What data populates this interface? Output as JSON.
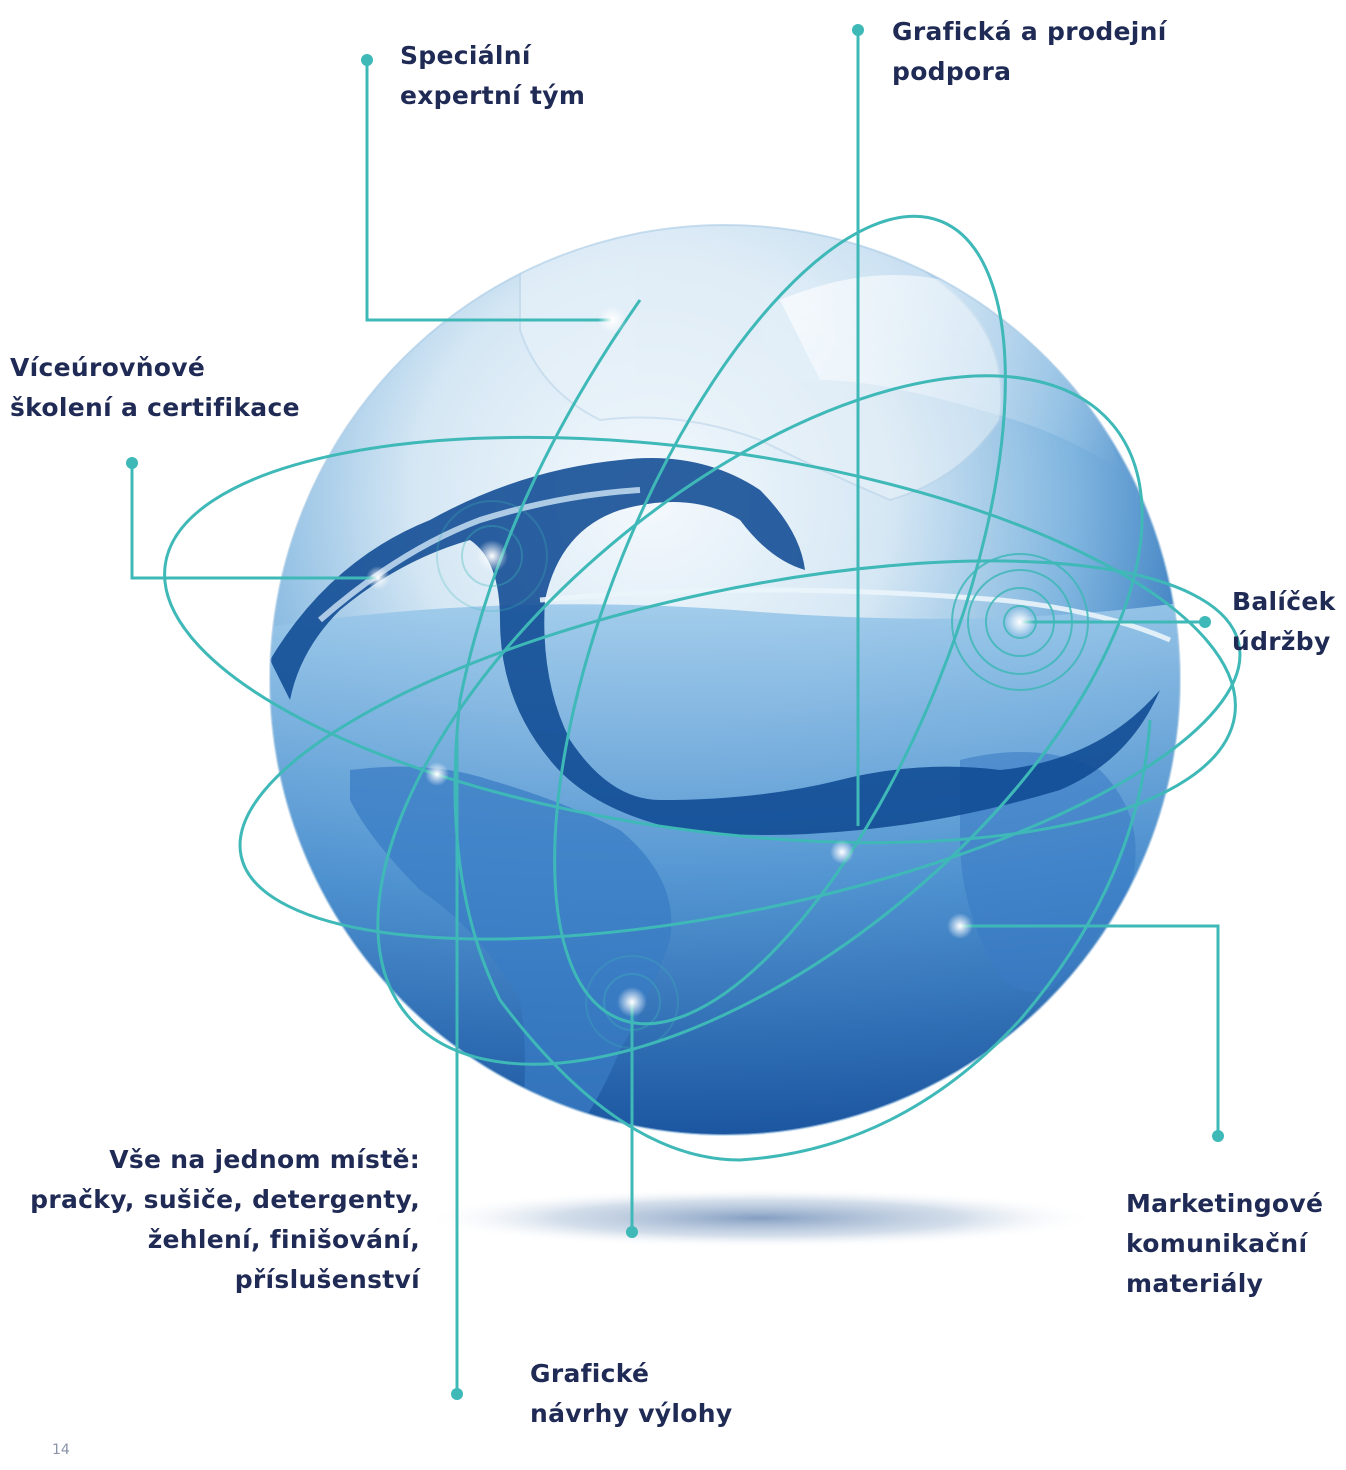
{
  "labels": {
    "special_team": [
      "Speciální",
      "expertní tým"
    ],
    "graphic_sales": [
      "Grafická a prodejní",
      "podpora"
    ],
    "training": [
      "Víceúrovňové",
      "školení a certifikace"
    ],
    "maintenance": [
      "Balíček",
      "údržby"
    ],
    "one_stop": [
      "Vše na jednom místě:",
      "pračky, sušiče, detergenty,",
      "žehlení, finišování,",
      "příslušenství"
    ],
    "marketing": [
      "Marketingové",
      "komunikační",
      "materiály"
    ],
    "window_design": [
      "Grafické",
      "návrhy výlohy"
    ]
  },
  "page_number": "14",
  "colors": {
    "connector": "#3fb8b8",
    "label_text": "#1f2a55",
    "globe_light": "#dcecf6",
    "globe_mid": "#6aa9d8",
    "globe_dark": "#1c5fa8",
    "water": "#0f4a93"
  }
}
